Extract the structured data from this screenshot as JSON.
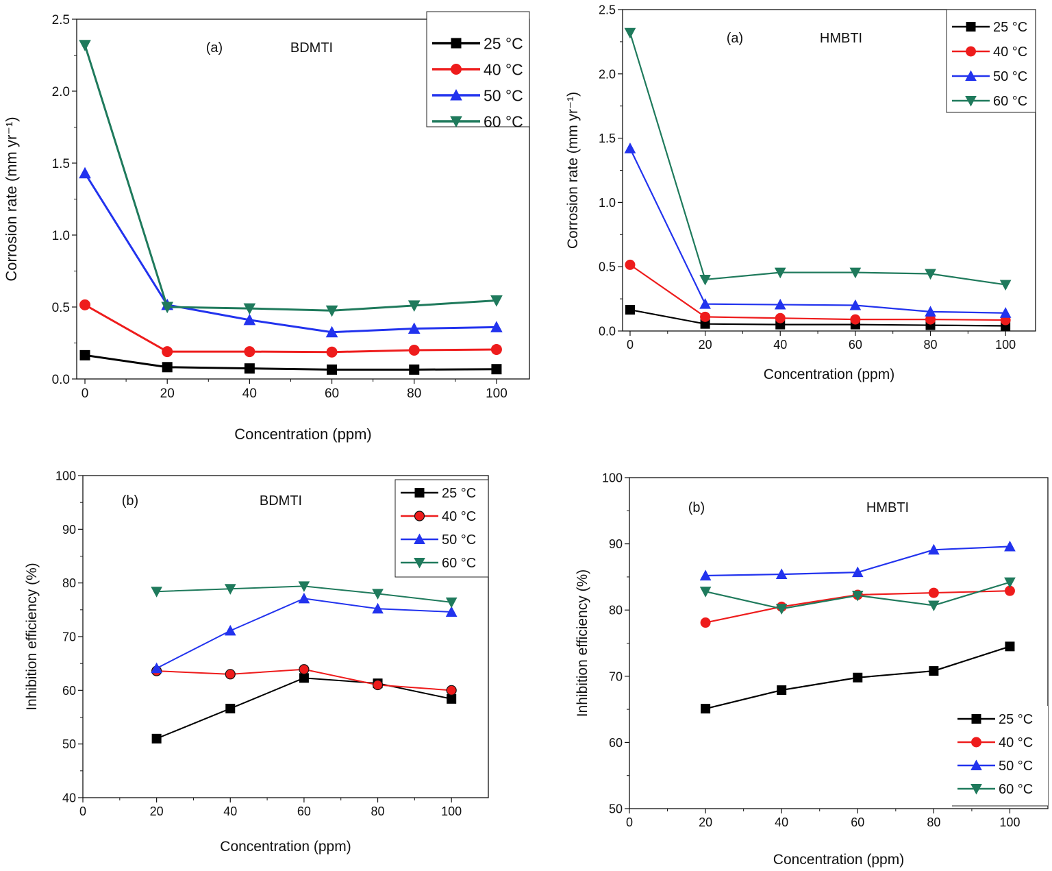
{
  "chart_data": [
    {
      "type": "line",
      "panel": "(a)",
      "compound": "BDMTI",
      "xlabel": "Concentration (ppm)",
      "ylabel": "Corrosion rate  (mm yr⁻¹)",
      "xlim": [
        -2,
        108
      ],
      "ylim": [
        0,
        2.5
      ],
      "xticks": [
        0,
        20,
        40,
        60,
        80,
        100
      ],
      "yticks": [
        0.0,
        0.5,
        1.0,
        1.5,
        2.0,
        2.5
      ],
      "ytick_labels": [
        "0.0",
        "0.5",
        "1.0",
        "1.5",
        "2.0",
        "2.5"
      ],
      "x": [
        0,
        20,
        40,
        60,
        80,
        100
      ],
      "legend_position": "top-right",
      "series": [
        {
          "name": "25 °C",
          "color": "#000000",
          "marker": "square",
          "values": [
            0.165,
            0.082,
            0.073,
            0.065,
            0.065,
            0.068
          ]
        },
        {
          "name": "40 °C",
          "color": "#ee1c1c",
          "marker": "circle",
          "values": [
            0.515,
            0.19,
            0.19,
            0.187,
            0.2,
            0.205
          ]
        },
        {
          "name": "50 °C",
          "color": "#2233ee",
          "marker": "triangle-up",
          "values": [
            1.43,
            0.515,
            0.41,
            0.325,
            0.35,
            0.36
          ]
        },
        {
          "name": "60 °C",
          "color": "#1f7a5c",
          "marker": "triangle-down",
          "values": [
            2.32,
            0.5,
            0.49,
            0.475,
            0.51,
            0.545
          ]
        }
      ]
    },
    {
      "type": "line",
      "panel": "(a)",
      "compound": "HMBTI",
      "xlabel": "Concentration (ppm)",
      "ylabel": "Corrosion rate  (mm yr⁻¹)",
      "xlim": [
        -2,
        108
      ],
      "ylim": [
        0,
        2.5
      ],
      "xticks": [
        0,
        20,
        40,
        60,
        80,
        100
      ],
      "yticks": [
        0.0,
        0.5,
        1.0,
        1.5,
        2.0,
        2.5
      ],
      "ytick_labels": [
        "0.0",
        "0.5",
        "1.0",
        "1.5",
        "2.0",
        "2.5"
      ],
      "x": [
        0,
        20,
        40,
        60,
        80,
        100
      ],
      "legend_position": "top-right",
      "series": [
        {
          "name": "25 °C",
          "color": "#000000",
          "marker": "square",
          "values": [
            0.165,
            0.055,
            0.05,
            0.05,
            0.045,
            0.04
          ]
        },
        {
          "name": "40 °C",
          "color": "#ee1c1c",
          "marker": "circle",
          "values": [
            0.515,
            0.11,
            0.1,
            0.09,
            0.09,
            0.085
          ]
        },
        {
          "name": "50 °C",
          "color": "#2233ee",
          "marker": "triangle-up",
          "values": [
            1.42,
            0.21,
            0.205,
            0.2,
            0.15,
            0.14
          ]
        },
        {
          "name": "60 °C",
          "color": "#1f7a5c",
          "marker": "triangle-down",
          "values": [
            2.32,
            0.4,
            0.455,
            0.455,
            0.445,
            0.36
          ]
        }
      ]
    },
    {
      "type": "line",
      "panel": "(b)",
      "compound": "BDMTI",
      "xlabel": "Concentration (ppm)",
      "ylabel": "Inhibition efficiency  (%)",
      "xlim": [
        0,
        110
      ],
      "ylim": [
        40,
        100
      ],
      "xticks": [
        0,
        20,
        40,
        60,
        80,
        100
      ],
      "yticks": [
        40,
        50,
        60,
        70,
        80,
        90,
        100
      ],
      "ytick_labels": [
        "40",
        "50",
        "60",
        "70",
        "80",
        "90",
        "100"
      ],
      "x": [
        20,
        40,
        60,
        80,
        100
      ],
      "legend_position": "top-right",
      "series": [
        {
          "name": "25 °C",
          "color": "#000000",
          "marker": "square",
          "values": [
            51.0,
            56.6,
            62.3,
            61.3,
            58.4
          ]
        },
        {
          "name": "40 °C",
          "color": "#ee1c1c",
          "marker": "circle",
          "values": [
            63.6,
            63.0,
            63.9,
            61.0,
            60.0
          ]
        },
        {
          "name": "50 °C",
          "color": "#2233ee",
          "marker": "triangle-up",
          "values": [
            64.1,
            71.1,
            77.1,
            75.2,
            74.6
          ]
        },
        {
          "name": "60 °C",
          "color": "#1f7a5c",
          "marker": "triangle-down",
          "values": [
            78.4,
            78.9,
            79.4,
            78.0,
            76.4
          ]
        }
      ]
    },
    {
      "type": "line",
      "panel": "(b)",
      "compound": "HMBTI",
      "xlabel": "Concentration (ppm)",
      "ylabel": "Inhibition efficiency  (%)",
      "xlim": [
        0,
        110
      ],
      "ylim": [
        50,
        100
      ],
      "xticks": [
        0,
        20,
        40,
        60,
        80,
        100
      ],
      "yticks": [
        50,
        60,
        70,
        80,
        90,
        100
      ],
      "ytick_labels": [
        "50",
        "60",
        "70",
        "80",
        "90",
        "100"
      ],
      "x": [
        20,
        40,
        60,
        80,
        100
      ],
      "legend_position": "bottom-right",
      "series": [
        {
          "name": "25 °C",
          "color": "#000000",
          "marker": "square",
          "values": [
            65.1,
            67.9,
            69.8,
            70.8,
            74.5
          ]
        },
        {
          "name": "40 °C",
          "color": "#ee1c1c",
          "marker": "circle",
          "values": [
            78.1,
            80.5,
            82.3,
            82.6,
            82.9
          ]
        },
        {
          "name": "50 °C",
          "color": "#2233ee",
          "marker": "triangle-up",
          "values": [
            85.2,
            85.4,
            85.7,
            89.1,
            89.6
          ]
        },
        {
          "name": "60 °C",
          "color": "#1f7a5c",
          "marker": "triangle-down",
          "values": [
            82.8,
            80.2,
            82.2,
            80.7,
            84.2
          ]
        }
      ]
    }
  ]
}
